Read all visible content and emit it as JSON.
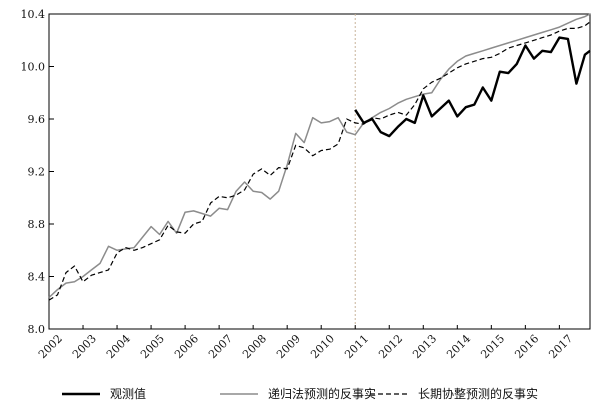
{
  "chart_data": {
    "type": "line",
    "title": "",
    "xlabel": "",
    "ylabel": "",
    "ylim": [
      8.0,
      10.4
    ],
    "xlim": [
      2002.0,
      2017.9
    ],
    "y_ticks": [
      "8.0",
      "8.4",
      "8.8",
      "9.2",
      "9.6",
      "10.0",
      "10.4"
    ],
    "x_tick_labels": [
      "2002",
      "2003",
      "2004",
      "2005",
      "2006",
      "2007",
      "2008",
      "2009",
      "2010",
      "2011",
      "2012",
      "2013",
      "2014",
      "2015",
      "2016",
      "2017"
    ],
    "vertical_marker_x": 2011.0,
    "grid": false,
    "legend_position": "bottom",
    "series": [
      {
        "name": "观测值",
        "style": "solid-thick",
        "color": "#000000",
        "x": [
          2011.0,
          2011.25,
          2011.5,
          2011.75,
          2012.0,
          2012.25,
          2012.5,
          2012.75,
          2013.0,
          2013.25,
          2013.5,
          2013.75,
          2014.0,
          2014.25,
          2014.5,
          2014.75,
          2015.0,
          2015.25,
          2015.5,
          2015.75,
          2016.0,
          2016.25,
          2016.5,
          2016.75,
          2017.0,
          2017.25,
          2017.5,
          2017.75,
          2017.9
        ],
        "y": [
          9.67,
          9.57,
          9.6,
          9.5,
          9.47,
          9.54,
          9.6,
          9.57,
          9.78,
          9.62,
          9.68,
          9.74,
          9.62,
          9.69,
          9.71,
          9.84,
          9.74,
          9.96,
          9.95,
          10.02,
          10.16,
          10.06,
          10.12,
          10.11,
          10.22,
          10.21,
          9.87,
          10.09,
          10.12
        ]
      },
      {
        "name": "递归法预测的反事实",
        "style": "solid",
        "color": "#8c8c8c",
        "x": [
          2002.0,
          2002.25,
          2002.5,
          2002.75,
          2003.0,
          2003.25,
          2003.5,
          2003.75,
          2004.0,
          2004.25,
          2004.5,
          2004.75,
          2005.0,
          2005.25,
          2005.5,
          2005.75,
          2006.0,
          2006.25,
          2006.5,
          2006.75,
          2007.0,
          2007.25,
          2007.5,
          2007.75,
          2008.0,
          2008.25,
          2008.5,
          2008.75,
          2009.0,
          2009.25,
          2009.5,
          2009.75,
          2010.0,
          2010.25,
          2010.5,
          2010.75,
          2011.0,
          2011.25,
          2011.5,
          2011.75,
          2012.0,
          2012.25,
          2012.5,
          2012.75,
          2013.0,
          2013.25,
          2013.5,
          2013.75,
          2014.0,
          2014.25,
          2014.5,
          2014.75,
          2015.0,
          2015.25,
          2015.5,
          2015.75,
          2016.0,
          2016.25,
          2016.5,
          2016.75,
          2017.0,
          2017.25,
          2017.5,
          2017.75,
          2017.9
        ],
        "y": [
          8.24,
          8.3,
          8.35,
          8.36,
          8.4,
          8.45,
          8.5,
          8.63,
          8.6,
          8.61,
          8.62,
          8.7,
          8.78,
          8.72,
          8.82,
          8.73,
          8.89,
          8.9,
          8.88,
          8.86,
          8.92,
          8.91,
          9.05,
          9.12,
          9.05,
          9.04,
          8.99,
          9.05,
          9.25,
          9.49,
          9.42,
          9.61,
          9.57,
          9.58,
          9.61,
          9.5,
          9.48,
          9.57,
          9.61,
          9.65,
          9.68,
          9.72,
          9.75,
          9.77,
          9.79,
          9.8,
          9.9,
          9.98,
          10.04,
          10.08,
          10.1,
          10.12,
          10.14,
          10.16,
          10.18,
          10.2,
          10.22,
          10.24,
          10.26,
          10.28,
          10.3,
          10.33,
          10.36,
          10.38,
          10.4
        ]
      },
      {
        "name": "长期协整预测的反事实",
        "style": "dashed",
        "color": "#000000",
        "x": [
          2002.0,
          2002.25,
          2002.5,
          2002.75,
          2003.0,
          2003.25,
          2003.5,
          2003.75,
          2004.0,
          2004.25,
          2004.5,
          2004.75,
          2005.0,
          2005.25,
          2005.5,
          2005.75,
          2006.0,
          2006.25,
          2006.5,
          2006.75,
          2007.0,
          2007.25,
          2007.5,
          2007.75,
          2008.0,
          2008.25,
          2008.5,
          2008.75,
          2009.0,
          2009.25,
          2009.5,
          2009.75,
          2010.0,
          2010.25,
          2010.5,
          2010.75,
          2011.0,
          2011.25,
          2011.5,
          2011.75,
          2012.0,
          2012.25,
          2012.5,
          2012.75,
          2013.0,
          2013.25,
          2013.5,
          2013.75,
          2014.0,
          2014.25,
          2014.5,
          2014.75,
          2015.0,
          2015.25,
          2015.5,
          2015.75,
          2016.0,
          2016.25,
          2016.5,
          2016.75,
          2017.0,
          2017.25,
          2017.5,
          2017.75,
          2017.9
        ],
        "y": [
          8.22,
          8.26,
          8.43,
          8.48,
          8.36,
          8.41,
          8.43,
          8.45,
          8.58,
          8.62,
          8.6,
          8.62,
          8.65,
          8.68,
          8.79,
          8.74,
          8.73,
          8.8,
          8.82,
          8.96,
          9.01,
          9.0,
          9.02,
          9.06,
          9.18,
          9.22,
          9.17,
          9.23,
          9.22,
          9.4,
          9.38,
          9.32,
          9.36,
          9.37,
          9.41,
          9.6,
          9.57,
          9.56,
          9.61,
          9.6,
          9.63,
          9.65,
          9.63,
          9.71,
          9.83,
          9.88,
          9.91,
          9.95,
          9.99,
          10.02,
          10.04,
          10.06,
          10.07,
          10.1,
          10.14,
          10.16,
          10.18,
          10.2,
          10.22,
          10.24,
          10.27,
          10.29,
          10.29,
          10.31,
          10.34
        ]
      }
    ]
  }
}
